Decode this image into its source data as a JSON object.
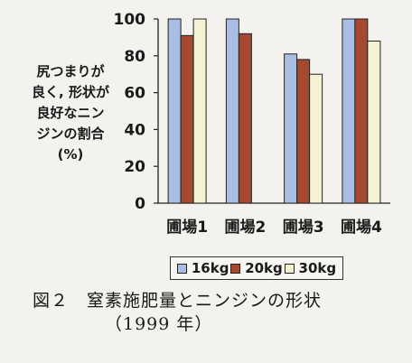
{
  "chart_data": {
    "type": "bar",
    "categories": [
      "圃場1",
      "圃場2",
      "圃場3",
      "圃場4"
    ],
    "series": [
      {
        "name": "16kg",
        "color": "#a8bfe3",
        "values": [
          100,
          100,
          81,
          100
        ]
      },
      {
        "name": "20kg",
        "color": "#a54a30",
        "values": [
          91,
          92,
          78,
          100
        ]
      },
      {
        "name": "30kg",
        "color": "#f5f2d4",
        "values": [
          100,
          null,
          70,
          88
        ]
      }
    ],
    "ylabel_lines": [
      "尻つまりが",
      "良く, 形状が",
      "良好なニン",
      "ジンの割合",
      "(%)"
    ],
    "yticks": [
      0,
      20,
      40,
      60,
      80,
      100
    ],
    "ylim": [
      0,
      100
    ],
    "grid": false,
    "legend_position": "bottom"
  },
  "caption": {
    "line1": "図２　窒素施肥量とニンジンの形状",
    "line2": "（1999 年）"
  }
}
